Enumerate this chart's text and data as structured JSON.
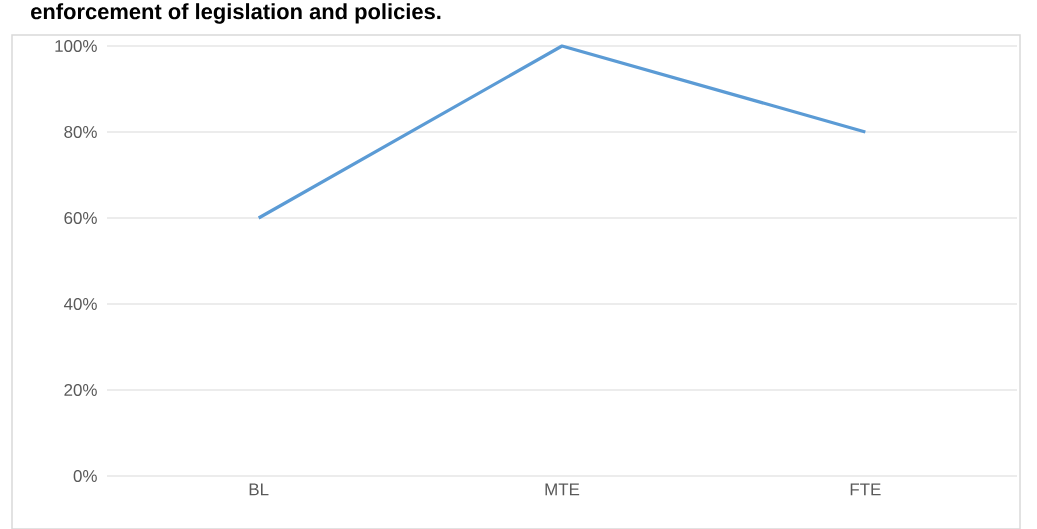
{
  "chart_data": {
    "type": "line",
    "title": "enforcement of legislation and policies.",
    "categories": [
      "BL",
      "MTE",
      "FTE"
    ],
    "series": [
      {
        "color": "#5b9bd5",
        "values": [
          60,
          100,
          80
        ]
      }
    ],
    "ylim": [
      0,
      100
    ],
    "yticks": [
      {
        "value": 0,
        "label": "0%"
      },
      {
        "value": 20,
        "label": "20%"
      },
      {
        "value": 40,
        "label": "40%"
      },
      {
        "value": 60,
        "label": "60%"
      },
      {
        "value": 80,
        "label": "80%"
      },
      {
        "value": 100,
        "label": "100%"
      }
    ],
    "grid": "y",
    "legend": false,
    "marker": "none",
    "line_style": "solid"
  }
}
